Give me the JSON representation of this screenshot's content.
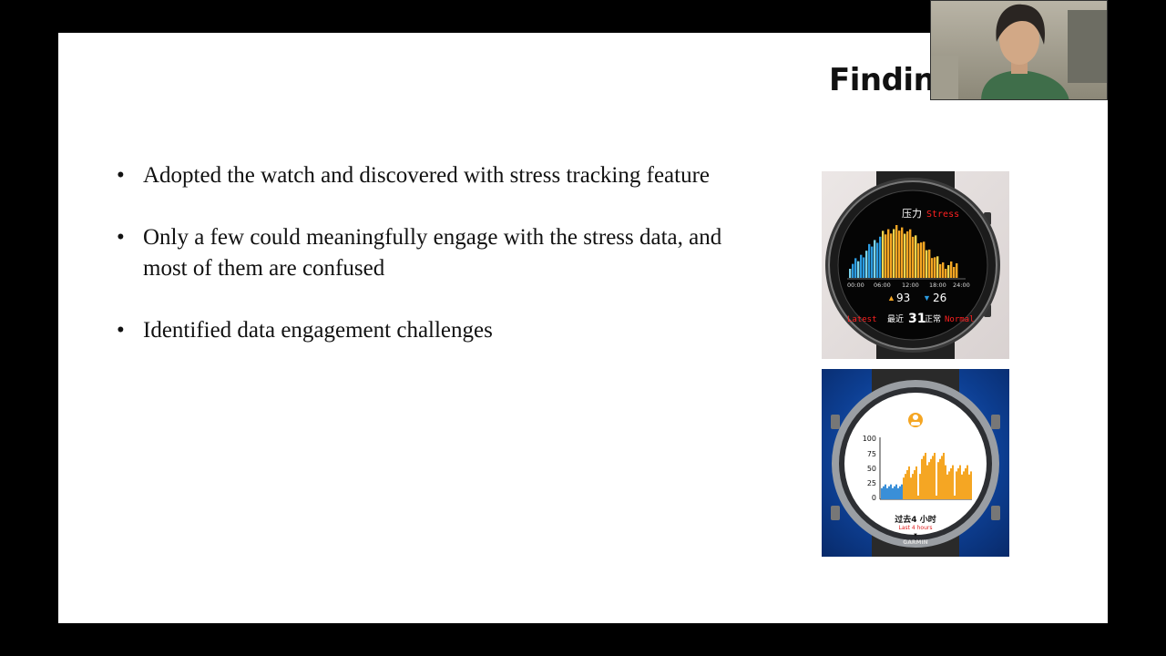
{
  "slide": {
    "title": "Findin",
    "bullets": [
      "Adopted the watch and discovered with stress tracking feature",
      "Only a few could meaningfully engage with the stress data, and most of them are confused",
      "Identified data engagement challenges"
    ]
  },
  "watch1": {
    "header_cn": "压力",
    "header_en": "Stress",
    "times": [
      "00:00",
      "06:00",
      "12:00",
      "18:00",
      "24:00"
    ],
    "max_value": "93",
    "min_value": "26",
    "latest_en": "Latest",
    "latest_cn": "最近",
    "latest_value": "31",
    "status_cn": "正常",
    "status_en": "Normal"
  },
  "watch2": {
    "y_ticks": [
      "100",
      "75",
      "50",
      "25",
      "0"
    ],
    "label_cn": "过去4 小时",
    "label_en": "Last 4 hours",
    "brand": "GARMIN"
  },
  "colors": {
    "slide_bg": "#ffffff",
    "frame_bg": "#000000",
    "stress_red": "#ff2020",
    "bar_orange": "#f5a623",
    "bar_blue": "#2b9be0"
  }
}
